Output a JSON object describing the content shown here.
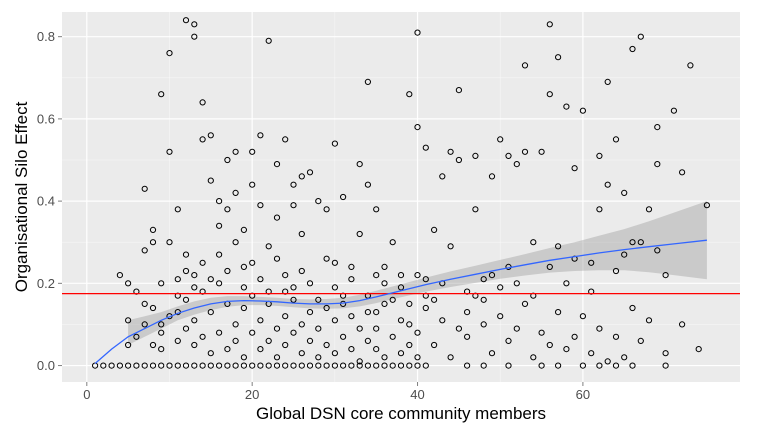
{
  "chart_data": {
    "type": "scatter",
    "title": "",
    "xlabel": "Global DSN core community members",
    "ylabel": "Organisational Silo Effect",
    "xlim": [
      -3,
      79
    ],
    "ylim": [
      -0.04,
      0.86
    ],
    "x_ticks": [
      0,
      20,
      40,
      60
    ],
    "y_ticks": [
      0.0,
      0.2,
      0.4,
      0.6,
      0.8
    ],
    "x_tick_labels": [
      "0",
      "20",
      "40",
      "60"
    ],
    "y_tick_labels": [
      "0.0",
      "0.2",
      "0.4",
      "0.6",
      "0.8"
    ],
    "grid": true,
    "legend": "none",
    "colors": {
      "panel_background": "#ebebeb",
      "grid": "#ffffff",
      "points": "#000000",
      "smooth_line": "#3366ff",
      "confidence_band": "#999999",
      "reference_line": "#ff0000"
    },
    "reference_line": {
      "y": 0.175
    },
    "smooth": {
      "x": [
        1,
        3,
        5,
        7,
        9,
        11,
        13,
        15,
        17,
        19,
        21,
        23,
        25,
        27,
        29,
        31,
        33,
        35,
        38,
        41,
        44,
        47,
        50,
        53,
        56,
        59,
        62,
        65,
        68,
        71,
        75
      ],
      "y": [
        0.005,
        0.04,
        0.07,
        0.09,
        0.11,
        0.127,
        0.14,
        0.15,
        0.156,
        0.158,
        0.157,
        0.155,
        0.152,
        0.15,
        0.15,
        0.152,
        0.158,
        0.167,
        0.182,
        0.197,
        0.21,
        0.222,
        0.234,
        0.245,
        0.256,
        0.265,
        0.274,
        0.282,
        0.289,
        0.296,
        0.305
      ],
      "lower": [
        null,
        null,
        0.05,
        0.07,
        0.09,
        0.11,
        0.124,
        0.135,
        0.143,
        0.147,
        0.147,
        0.145,
        0.142,
        0.139,
        0.138,
        0.139,
        0.144,
        0.152,
        0.166,
        0.18,
        0.191,
        0.201,
        0.211,
        0.219,
        0.226,
        0.23,
        0.232,
        0.232,
        0.227,
        0.22,
        0.21
      ],
      "upper": [
        null,
        null,
        0.11,
        0.12,
        0.13,
        0.144,
        0.156,
        0.165,
        0.169,
        0.169,
        0.167,
        0.165,
        0.162,
        0.161,
        0.162,
        0.165,
        0.172,
        0.182,
        0.198,
        0.214,
        0.229,
        0.243,
        0.257,
        0.271,
        0.286,
        0.3,
        0.316,
        0.332,
        0.351,
        0.372,
        0.4
      ]
    },
    "points": [
      [
        1,
        0
      ],
      [
        2,
        0
      ],
      [
        3,
        0
      ],
      [
        4,
        0
      ],
      [
        5,
        0
      ],
      [
        6,
        0
      ],
      [
        7,
        0
      ],
      [
        8,
        0
      ],
      [
        9,
        0
      ],
      [
        10,
        0
      ],
      [
        11,
        0
      ],
      [
        12,
        0
      ],
      [
        13,
        0
      ],
      [
        14,
        0
      ],
      [
        15,
        0
      ],
      [
        16,
        0
      ],
      [
        17,
        0
      ],
      [
        18,
        0
      ],
      [
        19,
        0
      ],
      [
        20,
        0
      ],
      [
        21,
        0
      ],
      [
        22,
        0
      ],
      [
        23,
        0
      ],
      [
        24,
        0
      ],
      [
        25,
        0
      ],
      [
        26,
        0
      ],
      [
        27,
        0
      ],
      [
        28,
        0
      ],
      [
        29,
        0
      ],
      [
        30,
        0
      ],
      [
        31,
        0
      ],
      [
        32,
        0
      ],
      [
        33,
        0
      ],
      [
        34,
        0
      ],
      [
        35,
        0
      ],
      [
        36,
        0
      ],
      [
        37,
        0
      ],
      [
        38,
        0
      ],
      [
        39,
        0
      ],
      [
        40,
        0
      ],
      [
        41,
        0
      ],
      [
        46,
        0
      ],
      [
        48,
        0
      ],
      [
        51,
        0
      ],
      [
        55,
        0
      ],
      [
        57,
        0
      ],
      [
        60,
        0
      ],
      [
        62,
        0
      ],
      [
        64,
        0
      ],
      [
        66,
        0
      ],
      [
        70,
        0
      ],
      [
        4,
        0.22
      ],
      [
        5,
        0.2
      ],
      [
        5,
        0.11
      ],
      [
        6,
        0.18
      ],
      [
        7,
        0.28
      ],
      [
        7,
        0.43
      ],
      [
        8,
        0.3
      ],
      [
        8,
        0.33
      ],
      [
        8,
        0.14
      ],
      [
        9,
        0.1
      ],
      [
        9,
        0.66
      ],
      [
        10,
        0.76
      ],
      [
        10,
        0.52
      ],
      [
        10,
        0.3
      ],
      [
        11,
        0.38
      ],
      [
        11,
        0.21
      ],
      [
        12,
        0.27
      ],
      [
        12,
        0.84
      ],
      [
        13,
        0.83
      ],
      [
        13,
        0.8
      ],
      [
        13,
        0.22
      ],
      [
        14,
        0.64
      ],
      [
        14,
        0.55
      ],
      [
        15,
        0.45
      ],
      [
        15,
        0.56
      ],
      [
        16,
        0.4
      ],
      [
        16,
        0.34
      ],
      [
        17,
        0.5
      ],
      [
        17,
        0.38
      ],
      [
        18,
        0.52
      ],
      [
        18,
        0.42
      ],
      [
        19,
        0.33
      ],
      [
        19,
        0.24
      ],
      [
        20,
        0.52
      ],
      [
        20,
        0.44
      ],
      [
        21,
        0.56
      ],
      [
        21,
        0.39
      ],
      [
        22,
        0.79
      ],
      [
        22,
        0.29
      ],
      [
        23,
        0.36
      ],
      [
        23,
        0.49
      ],
      [
        24,
        0.55
      ],
      [
        24,
        0.18
      ],
      [
        25,
        0.44
      ],
      [
        25,
        0.39
      ],
      [
        26,
        0.46
      ],
      [
        26,
        0.32
      ],
      [
        27,
        0.47
      ],
      [
        27,
        0.2
      ],
      [
        28,
        0.4
      ],
      [
        29,
        0.38
      ],
      [
        30,
        0.54
      ],
      [
        30,
        0.25
      ],
      [
        31,
        0.41
      ],
      [
        32,
        0.24
      ],
      [
        33,
        0.49
      ],
      [
        33,
        0.32
      ],
      [
        34,
        0.69
      ],
      [
        34,
        0.44
      ],
      [
        35,
        0.38
      ],
      [
        35,
        0.13
      ],
      [
        36,
        0.24
      ],
      [
        37,
        0.3
      ],
      [
        38,
        0.22
      ],
      [
        39,
        0.66
      ],
      [
        39,
        0.1
      ],
      [
        40,
        0.81
      ],
      [
        40,
        0.58
      ],
      [
        41,
        0.53
      ],
      [
        41,
        0.21
      ],
      [
        42,
        0.33
      ],
      [
        43,
        0.46
      ],
      [
        44,
        0.52
      ],
      [
        44,
        0.29
      ],
      [
        45,
        0.67
      ],
      [
        45,
        0.5
      ],
      [
        46,
        0.13
      ],
      [
        47,
        0.51
      ],
      [
        47,
        0.38
      ],
      [
        48,
        0.16
      ],
      [
        49,
        0.46
      ],
      [
        49,
        0.22
      ],
      [
        50,
        0.55
      ],
      [
        51,
        0.51
      ],
      [
        51,
        0.24
      ],
      [
        52,
        0.49
      ],
      [
        53,
        0.73
      ],
      [
        53,
        0.52
      ],
      [
        54,
        0.3
      ],
      [
        55,
        0.52
      ],
      [
        56,
        0.83
      ],
      [
        56,
        0.66
      ],
      [
        57,
        0.75
      ],
      [
        57,
        0.29
      ],
      [
        58,
        0.63
      ],
      [
        58,
        0.2
      ],
      [
        59,
        0.48
      ],
      [
        60,
        0.62
      ],
      [
        61,
        0.18
      ],
      [
        62,
        0.51
      ],
      [
        62,
        0.38
      ],
      [
        63,
        0.69
      ],
      [
        63,
        0.44
      ],
      [
        64,
        0.55
      ],
      [
        65,
        0.42
      ],
      [
        65,
        0.27
      ],
      [
        66,
        0.77
      ],
      [
        67,
        0.8
      ],
      [
        67,
        0.3
      ],
      [
        68,
        0.38
      ],
      [
        69,
        0.58
      ],
      [
        69,
        0.49
      ],
      [
        70,
        0.22
      ],
      [
        71,
        0.62
      ],
      [
        72,
        0.47
      ],
      [
        73,
        0.73
      ],
      [
        74,
        0.04
      ],
      [
        75,
        0.39
      ],
      [
        5,
        0.05
      ],
      [
        6,
        0.07
      ],
      [
        7,
        0.1
      ],
      [
        8,
        0.05
      ],
      [
        9,
        0.04
      ],
      [
        9,
        0.08
      ],
      [
        10,
        0.12
      ],
      [
        11,
        0.06
      ],
      [
        11,
        0.13
      ],
      [
        12,
        0.09
      ],
      [
        12,
        0.16
      ],
      [
        13,
        0.05
      ],
      [
        13,
        0.11
      ],
      [
        14,
        0.07
      ],
      [
        14,
        0.18
      ],
      [
        15,
        0.03
      ],
      [
        15,
        0.13
      ],
      [
        16,
        0.08
      ],
      [
        16,
        0.2
      ],
      [
        17,
        0.04
      ],
      [
        17,
        0.15
      ],
      [
        18,
        0.1
      ],
      [
        18,
        0.06
      ],
      [
        19,
        0.02
      ],
      [
        19,
        0.14
      ],
      [
        20,
        0.08
      ],
      [
        20,
        0.17
      ],
      [
        21,
        0.04
      ],
      [
        21,
        0.11
      ],
      [
        22,
        0.06
      ],
      [
        22,
        0.15
      ],
      [
        23,
        0.09
      ],
      [
        23,
        0.02
      ],
      [
        24,
        0.12
      ],
      [
        24,
        0.05
      ],
      [
        25,
        0.08
      ],
      [
        25,
        0.16
      ],
      [
        26,
        0.03
      ],
      [
        26,
        0.1
      ],
      [
        27,
        0.13
      ],
      [
        27,
        0.06
      ],
      [
        28,
        0.09
      ],
      [
        28,
        0.02
      ],
      [
        29,
        0.14
      ],
      [
        29,
        0.05
      ],
      [
        30,
        0.11
      ],
      [
        30,
        0.03
      ],
      [
        31,
        0.07
      ],
      [
        31,
        0.15
      ],
      [
        32,
        0.04
      ],
      [
        32,
        0.12
      ],
      [
        33,
        0.09
      ],
      [
        33,
        0.01
      ],
      [
        34,
        0.13
      ],
      [
        34,
        0.06
      ],
      [
        35,
        0.04
      ],
      [
        35,
        0.09
      ],
      [
        36,
        0.15
      ],
      [
        36,
        0.02
      ],
      [
        37,
        0.07
      ],
      [
        38,
        0.11
      ],
      [
        38,
        0.03
      ],
      [
        39,
        0.05
      ],
      [
        40,
        0.08
      ],
      [
        40,
        0.02
      ],
      [
        41,
        0.14
      ],
      [
        42,
        0.05
      ],
      [
        43,
        0.11
      ],
      [
        44,
        0.02
      ],
      [
        45,
        0.09
      ],
      [
        46,
        0.07
      ],
      [
        47,
        0.17
      ],
      [
        48,
        0.1
      ],
      [
        49,
        0.03
      ],
      [
        50,
        0.12
      ],
      [
        51,
        0.06
      ],
      [
        52,
        0.09
      ],
      [
        53,
        0.15
      ],
      [
        54,
        0.02
      ],
      [
        55,
        0.08
      ],
      [
        56,
        0.05
      ],
      [
        57,
        0.13
      ],
      [
        58,
        0.04
      ],
      [
        59,
        0.07
      ],
      [
        60,
        0.12
      ],
      [
        61,
        0.03
      ],
      [
        62,
        0.09
      ],
      [
        63,
        0.01
      ],
      [
        64,
        0.07
      ],
      [
        65,
        0.02
      ],
      [
        66,
        0.14
      ],
      [
        67,
        0.06
      ],
      [
        68,
        0.11
      ],
      [
        70,
        0.03
      ],
      [
        72,
        0.1
      ],
      [
        7,
        0.15
      ],
      [
        9,
        0.2
      ],
      [
        11,
        0.17
      ],
      [
        12,
        0.23
      ],
      [
        13,
        0.19
      ],
      [
        14,
        0.25
      ],
      [
        15,
        0.21
      ],
      [
        16,
        0.27
      ],
      [
        17,
        0.23
      ],
      [
        18,
        0.3
      ],
      [
        19,
        0.19
      ],
      [
        20,
        0.25
      ],
      [
        21,
        0.21
      ],
      [
        22,
        0.18
      ],
      [
        23,
        0.26
      ],
      [
        24,
        0.22
      ],
      [
        25,
        0.19
      ],
      [
        26,
        0.23
      ],
      [
        28,
        0.16
      ],
      [
        29,
        0.26
      ],
      [
        30,
        0.19
      ],
      [
        31,
        0.17
      ],
      [
        32,
        0.21
      ],
      [
        34,
        0.17
      ],
      [
        35,
        0.22
      ],
      [
        36,
        0.2
      ],
      [
        37,
        0.16
      ],
      [
        38,
        0.19
      ],
      [
        39,
        0.15
      ],
      [
        40,
        0.22
      ],
      [
        41,
        0.17
      ],
      [
        42,
        0.16
      ],
      [
        43,
        0.2
      ],
      [
        46,
        0.18
      ],
      [
        48,
        0.21
      ],
      [
        50,
        0.19
      ],
      [
        52,
        0.2
      ],
      [
        54,
        0.17
      ],
      [
        56,
        0.24
      ],
      [
        59,
        0.26
      ],
      [
        61,
        0.25
      ],
      [
        64,
        0.23
      ],
      [
        66,
        0.3
      ],
      [
        69,
        0.28
      ]
    ]
  }
}
